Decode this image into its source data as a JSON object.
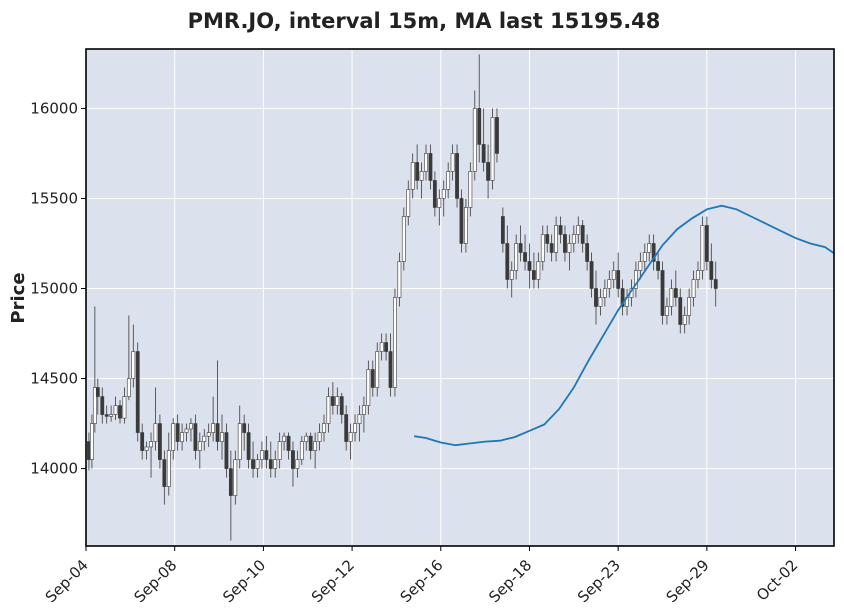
{
  "chart_data": {
    "type": "candlestick",
    "title": "PMR.JO, interval 15m, MA last 15195.48",
    "ylabel": "Price",
    "xlabel": "",
    "ylim": [
      13570,
      16330
    ],
    "yticks": [
      14000,
      14500,
      15000,
      15500,
      16000
    ],
    "xtick_labels": [
      "Sep-04",
      "Sep-08",
      "Sep-10",
      "Sep-12",
      "Sep-16",
      "Sep-18",
      "Sep-23",
      "Sep-29",
      "Oct-02"
    ],
    "grid": true,
    "colors": {
      "background": "#dce1ee",
      "grid": "#ffffff",
      "ma_line": "#1f77b4",
      "candle": "#3a3a3a",
      "frame": "#000000"
    },
    "moving_average_last": 15195.48,
    "moving_average": [
      [
        11.1,
        14180
      ],
      [
        11.5,
        14170
      ],
      [
        12.0,
        14145
      ],
      [
        12.5,
        14130
      ],
      [
        13.0,
        14140
      ],
      [
        13.5,
        14150
      ],
      [
        14.0,
        14155
      ],
      [
        14.5,
        14175
      ],
      [
        15.0,
        14210
      ],
      [
        15.5,
        14245
      ],
      [
        16.0,
        14330
      ],
      [
        16.5,
        14450
      ],
      [
        17.0,
        14600
      ],
      [
        17.5,
        14740
      ],
      [
        18.0,
        14880
      ],
      [
        18.5,
        15000
      ],
      [
        19.0,
        15120
      ],
      [
        19.5,
        15240
      ],
      [
        20.0,
        15330
      ],
      [
        20.5,
        15390
      ],
      [
        21.0,
        15440
      ],
      [
        21.5,
        15460
      ],
      [
        22.0,
        15440
      ],
      [
        22.5,
        15400
      ],
      [
        23.0,
        15360
      ],
      [
        23.5,
        15320
      ],
      [
        24.0,
        15280
      ],
      [
        24.5,
        15250
      ],
      [
        25.0,
        15230
      ],
      [
        25.3,
        15195.48
      ]
    ],
    "candles": [
      [
        0.1,
        14150,
        14200,
        13990,
        14050
      ],
      [
        0.2,
        14050,
        14300,
        14000,
        14250
      ],
      [
        0.3,
        14250,
        14900,
        14200,
        14450
      ],
      [
        0.4,
        14450,
        14500,
        14300,
        14400
      ],
      [
        0.55,
        14400,
        14450,
        14250,
        14300
      ],
      [
        0.7,
        14300,
        14350,
        14250,
        14290
      ],
      [
        0.85,
        14290,
        14350,
        14260,
        14300
      ],
      [
        1.0,
        14300,
        14400,
        14270,
        14350
      ],
      [
        1.15,
        14350,
        14380,
        14250,
        14280
      ],
      [
        1.3,
        14280,
        14450,
        14250,
        14400
      ],
      [
        1.45,
        14400,
        14850,
        14380,
        14500
      ],
      [
        1.6,
        14500,
        14800,
        14450,
        14650
      ],
      [
        1.75,
        14650,
        14700,
        14150,
        14200
      ],
      [
        1.9,
        14200,
        14250,
        14050,
        14100
      ],
      [
        2.05,
        14100,
        14150,
        14050,
        14120
      ],
      [
        2.2,
        14120,
        14200,
        13950,
        14150
      ],
      [
        2.35,
        14150,
        14450,
        14100,
        14250
      ],
      [
        2.5,
        14250,
        14300,
        14000,
        14050
      ],
      [
        2.65,
        14050,
        14100,
        13800,
        13900
      ],
      [
        2.8,
        13900,
        14200,
        13850,
        14100
      ],
      [
        2.95,
        14100,
        14280,
        14050,
        14250
      ],
      [
        3.1,
        14250,
        14300,
        14100,
        14150
      ],
      [
        3.25,
        14150,
        14250,
        14100,
        14200
      ],
      [
        3.4,
        14200,
        14250,
        14150,
        14220
      ],
      [
        3.55,
        14220,
        14280,
        14150,
        14250
      ],
      [
        3.7,
        14250,
        14300,
        14050,
        14100
      ],
      [
        3.85,
        14100,
        14200,
        14000,
        14150
      ],
      [
        4.0,
        14150,
        14220,
        14100,
        14180
      ],
      [
        4.15,
        14180,
        14250,
        14120,
        14200
      ],
      [
        4.3,
        14200,
        14400,
        14150,
        14250
      ],
      [
        4.45,
        14250,
        14600,
        14100,
        14150
      ],
      [
        4.6,
        14150,
        14300,
        14050,
        14200
      ],
      [
        4.75,
        14200,
        14250,
        13950,
        14000
      ],
      [
        4.9,
        14000,
        14100,
        13600,
        13850
      ],
      [
        5.05,
        13850,
        14100,
        13800,
        14050
      ],
      [
        5.2,
        14050,
        14350,
        14000,
        14250
      ],
      [
        5.35,
        14250,
        14300,
        14100,
        14200
      ],
      [
        5.5,
        14200,
        14250,
        14000,
        14050
      ],
      [
        5.65,
        14050,
        14150,
        13950,
        14000
      ],
      [
        5.8,
        14000,
        14080,
        13950,
        14050
      ],
      [
        5.95,
        14050,
        14150,
        14000,
        14100
      ],
      [
        6.1,
        14100,
        14180,
        14000,
        14050
      ],
      [
        6.25,
        14050,
        14150,
        13950,
        14000
      ],
      [
        6.4,
        14000,
        14100,
        13950,
        14050
      ],
      [
        6.55,
        14050,
        14200,
        14000,
        14150
      ],
      [
        6.7,
        14150,
        14200,
        14100,
        14180
      ],
      [
        6.85,
        14180,
        14200,
        14050,
        14100
      ],
      [
        7.0,
        14100,
        14150,
        13900,
        14000
      ],
      [
        7.15,
        14000,
        14100,
        13950,
        14050
      ],
      [
        7.3,
        14050,
        14180,
        14020,
        14150
      ],
      [
        7.45,
        14150,
        14200,
        14100,
        14180
      ],
      [
        7.6,
        14180,
        14200,
        14050,
        14100
      ],
      [
        7.75,
        14100,
        14200,
        14000,
        14150
      ],
      [
        7.9,
        14150,
        14250,
        14100,
        14200
      ],
      [
        8.05,
        14200,
        14300,
        14150,
        14250
      ],
      [
        8.2,
        14250,
        14450,
        14200,
        14400
      ],
      [
        8.35,
        14400,
        14480,
        14300,
        14350
      ],
      [
        8.5,
        14350,
        14450,
        14300,
        14400
      ],
      [
        8.65,
        14400,
        14420,
        14250,
        14300
      ],
      [
        8.8,
        14300,
        14350,
        14100,
        14150
      ],
      [
        8.95,
        14150,
        14250,
        14050,
        14200
      ],
      [
        9.1,
        14200,
        14300,
        14150,
        14250
      ],
      [
        9.25,
        14250,
        14350,
        14150,
        14300
      ],
      [
        9.4,
        14300,
        14400,
        14200,
        14350
      ],
      [
        9.55,
        14350,
        14600,
        14300,
        14550
      ],
      [
        9.7,
        14550,
        14600,
        14400,
        14450
      ],
      [
        9.85,
        14450,
        14700,
        14400,
        14650
      ],
      [
        10.0,
        14650,
        14750,
        14600,
        14700
      ],
      [
        10.15,
        14700,
        14750,
        14600,
        14650
      ],
      [
        10.3,
        14650,
        14750,
        14400,
        14450
      ],
      [
        10.45,
        14450,
        15000,
        14400,
        14950
      ],
      [
        10.6,
        14950,
        15200,
        14900,
        15150
      ],
      [
        10.75,
        15150,
        15450,
        15100,
        15400
      ],
      [
        10.9,
        15400,
        15600,
        15350,
        15550
      ],
      [
        11.05,
        15550,
        15750,
        15500,
        15700
      ],
      [
        11.2,
        15700,
        15800,
        15550,
        15600
      ],
      [
        11.35,
        15600,
        15700,
        15500,
        15650
      ],
      [
        11.5,
        15650,
        15800,
        15600,
        15750
      ],
      [
        11.65,
        15750,
        15800,
        15550,
        15600
      ],
      [
        11.8,
        15600,
        15650,
        15400,
        15450
      ],
      [
        11.95,
        15450,
        15550,
        15350,
        15500
      ],
      [
        12.1,
        15500,
        15600,
        15400,
        15550
      ],
      [
        12.25,
        15550,
        15700,
        15500,
        15650
      ],
      [
        12.4,
        15650,
        15800,
        15600,
        15750
      ],
      [
        12.55,
        15750,
        15800,
        15450,
        15500
      ],
      [
        12.7,
        15500,
        15550,
        15200,
        15250
      ],
      [
        12.85,
        15250,
        15500,
        15200,
        15450
      ],
      [
        13.0,
        15450,
        15700,
        15400,
        15650
      ],
      [
        13.15,
        15650,
        16100,
        15600,
        16000
      ],
      [
        13.3,
        16000,
        16300,
        15700,
        15800
      ],
      [
        13.45,
        15800,
        16000,
        15650,
        15700
      ],
      [
        13.6,
        15700,
        15800,
        15500,
        15600
      ],
      [
        13.75,
        15600,
        16000,
        15550,
        15950
      ],
      [
        13.9,
        15950,
        16000,
        15700,
        15750
      ],
      [
        14.1,
        15400,
        15450,
        15200,
        15250
      ],
      [
        14.25,
        15250,
        15350,
        15000,
        15050
      ],
      [
        14.4,
        15050,
        15150,
        14950,
        15100
      ],
      [
        14.55,
        15100,
        15300,
        15050,
        15250
      ],
      [
        14.7,
        15250,
        15350,
        15150,
        15200
      ],
      [
        14.85,
        15200,
        15300,
        15100,
        15150
      ],
      [
        15.0,
        15150,
        15250,
        15000,
        15100
      ],
      [
        15.15,
        15100,
        15200,
        15000,
        15050
      ],
      [
        15.3,
        15050,
        15200,
        15000,
        15150
      ],
      [
        15.45,
        15150,
        15350,
        15100,
        15300
      ],
      [
        15.6,
        15300,
        15350,
        15200,
        15250
      ],
      [
        15.75,
        15250,
        15300,
        15150,
        15200
      ],
      [
        15.9,
        15200,
        15400,
        15150,
        15350
      ],
      [
        16.05,
        15350,
        15400,
        15250,
        15300
      ],
      [
        16.2,
        15300,
        15350,
        15150,
        15200
      ],
      [
        16.35,
        15200,
        15300,
        15100,
        15250
      ],
      [
        16.5,
        15250,
        15350,
        15200,
        15300
      ],
      [
        16.65,
        15300,
        15400,
        15250,
        15350
      ],
      [
        16.8,
        15350,
        15380,
        15200,
        15250
      ],
      [
        16.95,
        15250,
        15300,
        15100,
        15150
      ],
      [
        17.1,
        15150,
        15200,
        14950,
        15000
      ],
      [
        17.25,
        15000,
        15100,
        14800,
        14900
      ],
      [
        17.4,
        14900,
        15000,
        14850,
        14950
      ],
      [
        17.55,
        14950,
        15050,
        14900,
        15000
      ],
      [
        17.7,
        15000,
        15100,
        14950,
        15050
      ],
      [
        17.85,
        15050,
        15150,
        15000,
        15100
      ],
      [
        18.0,
        15100,
        15200,
        14950,
        15000
      ],
      [
        18.15,
        15000,
        15050,
        14850,
        14900
      ],
      [
        18.3,
        14900,
        15000,
        14850,
        14950
      ],
      [
        18.45,
        14950,
        15050,
        14900,
        15000
      ],
      [
        18.6,
        15000,
        15150,
        14950,
        15100
      ],
      [
        18.75,
        15100,
        15200,
        15050,
        15150
      ],
      [
        18.9,
        15150,
        15250,
        15100,
        15200
      ],
      [
        19.05,
        15200,
        15300,
        15150,
        15250
      ],
      [
        19.2,
        15250,
        15300,
        15100,
        15150
      ],
      [
        19.35,
        15150,
        15200,
        15050,
        15100
      ],
      [
        19.5,
        15100,
        15150,
        14800,
        14850
      ],
      [
        19.65,
        14850,
        14950,
        14800,
        14900
      ],
      [
        19.8,
        14900,
        15050,
        14850,
        15000
      ],
      [
        19.95,
        15000,
        15100,
        14900,
        14950
      ],
      [
        20.1,
        14950,
        15000,
        14750,
        14800
      ],
      [
        20.25,
        14800,
        14900,
        14750,
        14850
      ],
      [
        20.4,
        14850,
        15000,
        14800,
        14950
      ],
      [
        20.55,
        14950,
        15100,
        14900,
        15050
      ],
      [
        20.7,
        15050,
        15150,
        15000,
        15100
      ],
      [
        20.85,
        15100,
        15400,
        15050,
        15350
      ],
      [
        21.0,
        15350,
        15400,
        15100,
        15150
      ],
      [
        21.15,
        15150,
        15250,
        15000,
        15050
      ],
      [
        21.3,
        15050,
        15150,
        14900,
        15000
      ]
    ]
  }
}
